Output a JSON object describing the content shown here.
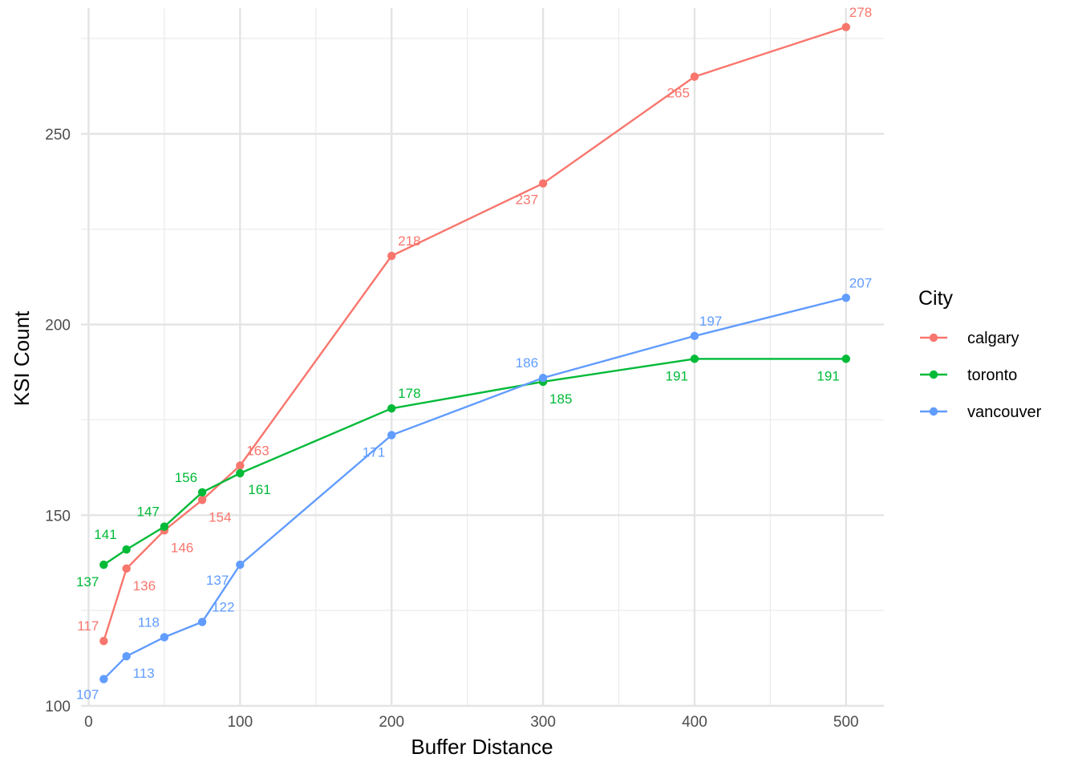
{
  "chart_data": {
    "type": "line",
    "title": "",
    "xlabel": "Buffer Distance",
    "ylabel": "KSI Count",
    "xlim": [
      -5,
      525
    ],
    "ylim": [
      100,
      283
    ],
    "x_ticks": [
      0,
      100,
      200,
      300,
      400,
      500
    ],
    "x_tick_labels": [
      "0",
      "100",
      "200",
      "300",
      "400",
      "500"
    ],
    "x_minor_ticks": [
      50,
      150,
      250,
      350,
      450
    ],
    "y_ticks": [
      100,
      150,
      200,
      250
    ],
    "y_tick_labels": [
      "100",
      "150",
      "200",
      "250"
    ],
    "y_minor_ticks": [
      125,
      175,
      225,
      275
    ],
    "grid": true,
    "legend": {
      "title": "City",
      "position": "right"
    },
    "series": [
      {
        "name": "calgary",
        "color": "#F8766D",
        "x": [
          10,
          25,
          50,
          75,
          100,
          200,
          300,
          400,
          500
        ],
        "values": [
          117,
          136,
          146,
          154,
          163,
          218,
          237,
          265,
          278
        ],
        "labels": [
          "117",
          "136",
          "146",
          "154",
          "163",
          "218",
          "237",
          "265",
          "278"
        ]
      },
      {
        "name": "toronto",
        "color": "#00BA38",
        "x": [
          10,
          25,
          50,
          75,
          100,
          200,
          300,
          400,
          500
        ],
        "values": [
          137,
          141,
          147,
          156,
          161,
          178,
          185,
          191,
          191
        ],
        "labels": [
          "137",
          "141",
          "147",
          "156",
          "161",
          "178",
          "185",
          "191",
          "191"
        ]
      },
      {
        "name": "vancouver",
        "color": "#619CFF",
        "x": [
          10,
          25,
          50,
          75,
          100,
          200,
          300,
          400,
          500
        ],
        "values": [
          107,
          113,
          118,
          122,
          137,
          171,
          186,
          197,
          207
        ],
        "labels": [
          "107",
          "113",
          "118",
          "122",
          "137",
          "171",
          "186",
          "197",
          "207"
        ]
      }
    ]
  }
}
